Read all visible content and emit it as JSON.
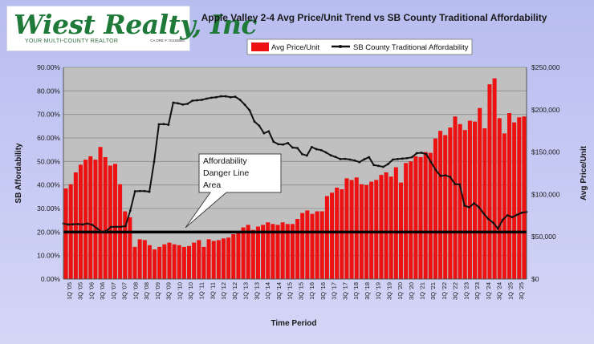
{
  "logo": {
    "name": "Wiest Realty, Inc",
    "tagline": "YOUR MULTI-COUNTY REALTOR",
    "license": "CA DRE #: 01183680"
  },
  "chart_data": {
    "type": "bar",
    "title": "Apple Valley 2-4 Avg Price/Unit Trend vs SB County Traditional Affordability",
    "xlabel": "Time Period",
    "ylabel": "SB Affordability",
    "y2label": "Avg Price/Unit",
    "ylim": [
      0,
      0.9
    ],
    "y2lim": [
      0,
      250000
    ],
    "yticks": [
      "0.00%",
      "10.00%",
      "20.00%",
      "30.00%",
      "40.00%",
      "50.00%",
      "60.00%",
      "70.00%",
      "80.00%",
      "90.00%"
    ],
    "y2ticks": [
      "$0",
      "$50,000",
      "$100,000",
      "$150,000",
      "$200,000",
      "$250,000"
    ],
    "x_tick_labels": [
      "1Q '05",
      "3Q '05",
      "1Q '06",
      "3Q '06",
      "1Q '07",
      "3Q '07",
      "1Q '08",
      "3Q '08",
      "1Q '09",
      "3Q '09",
      "1Q '10",
      "3Q '10",
      "1Q '11",
      "3Q '11",
      "1Q '12",
      "3Q '12",
      "1Q '13",
      "3Q '13",
      "1Q '14",
      "3Q '14",
      "1Q '15",
      "3Q '15",
      "1Q '16",
      "3Q '16",
      "1Q '17",
      "3Q '17",
      "1Q '18",
      "3Q '18",
      "1Q '19",
      "3Q '19",
      "1Q '20",
      "3Q '20",
      "1Q '21",
      "3Q '21",
      "1Q '22",
      "3Q '22",
      "1Q '23",
      "3Q '23",
      "1Q '24",
      "3Q '24",
      "1Q '25",
      "3Q '25"
    ],
    "grid": true,
    "legend_position": "top-right",
    "colors": {
      "bars": "#ee1111",
      "line": "#111111",
      "plot_bg": "#c0c0c0",
      "danger_line": "#000000"
    },
    "series": [
      {
        "name": "Avg Price/Unit",
        "type": "bar",
        "axis": "right",
        "values": [
          107000,
          112000,
          126000,
          135000,
          141000,
          145000,
          141000,
          156000,
          144000,
          134000,
          136000,
          112000,
          80000,
          73000,
          38000,
          47000,
          46000,
          40000,
          35000,
          38000,
          41000,
          43000,
          41000,
          40000,
          38000,
          39000,
          43000,
          46000,
          38000,
          47000,
          45000,
          46000,
          48000,
          49000,
          53000,
          56000,
          61000,
          64000,
          58000,
          62000,
          64000,
          67000,
          65000,
          64000,
          67000,
          65000,
          65000,
          71000,
          78000,
          81000,
          77000,
          80000,
          80000,
          98000,
          102000,
          108000,
          106000,
          119000,
          117000,
          120000,
          112000,
          111000,
          115000,
          117000,
          123000,
          126000,
          121000,
          132000,
          114000,
          137000,
          139000,
          145000,
          144000,
          150000,
          149000,
          166000,
          175000,
          170000,
          179000,
          192000,
          183000,
          176000,
          187000,
          186000,
          202000,
          178000,
          230000,
          237000,
          190000,
          172000,
          196000,
          185000,
          191000,
          192000
        ],
        "display_values_note": ""
      },
      {
        "name": "SB County Traditional Affordability",
        "type": "line",
        "axis": "left",
        "values": [
          0.236,
          0.232,
          0.233,
          0.234,
          0.232,
          0.236,
          0.231,
          0.216,
          0.2,
          0.205,
          0.222,
          0.222,
          0.222,
          0.225,
          0.291,
          0.373,
          0.374,
          0.374,
          0.371,
          0.499,
          0.658,
          0.659,
          0.656,
          0.75,
          0.747,
          0.742,
          0.745,
          0.758,
          0.76,
          0.762,
          0.767,
          0.771,
          0.773,
          0.777,
          0.777,
          0.773,
          0.775,
          0.762,
          0.741,
          0.717,
          0.67,
          0.652,
          0.62,
          0.628,
          0.584,
          0.573,
          0.572,
          0.578,
          0.559,
          0.557,
          0.531,
          0.525,
          0.561,
          0.552,
          0.548,
          0.538,
          0.526,
          0.519,
          0.51,
          0.511,
          0.508,
          0.504,
          0.497,
          0.509,
          0.518,
          0.485,
          0.481,
          0.477,
          0.489,
          0.508,
          0.51,
          0.512,
          0.514,
          0.518,
          0.535,
          0.537,
          0.531,
          0.497,
          0.463,
          0.438,
          0.441,
          0.434,
          0.404,
          0.402,
          0.312,
          0.305,
          0.322,
          0.306,
          0.279,
          0.255,
          0.24,
          0.214,
          0.252,
          0.271,
          0.263,
          0.273,
          0.282,
          0.285
        ]
      }
    ],
    "danger_level": 0.2,
    "annotation": "Affordability Danger Line Area"
  }
}
